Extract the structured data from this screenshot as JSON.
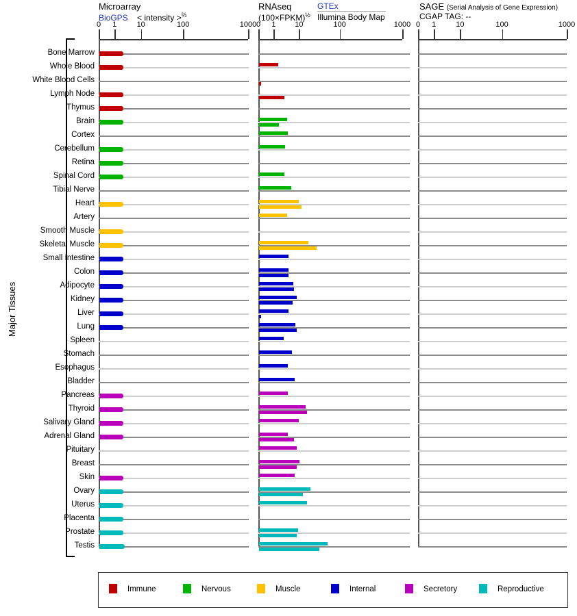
{
  "header": {
    "panels": [
      {
        "title": "Microarray",
        "link_label": "BioGPS",
        "scale_label": "< intensity >",
        "scale_sup": "⅔",
        "ticks": [
          "0",
          "1",
          "10",
          "100",
          "1000"
        ]
      },
      {
        "title": "RNAseq",
        "scale_label": "(100×FPKM)",
        "scale_sup": "½",
        "link_label": "GTEx",
        "sub_label": "Illumina Body Map",
        "ticks": [
          "0",
          "1",
          "10",
          "100",
          "1000"
        ]
      },
      {
        "title": "SAGE",
        "title_note": "(Serial Analysis of Gene Expression)",
        "tag_label": "CGAP TAG: --",
        "ticks": [
          "0",
          "1",
          "10",
          "100",
          "1000"
        ]
      }
    ]
  },
  "sidebar_label": "Major Tissues",
  "colors": {
    "immune": "#C00000",
    "nervous": "#00B400",
    "muscle": "#FCC200",
    "internal": "#0000CC",
    "secretory": "#BB00BB",
    "reproductive": "#00B9B9"
  },
  "legend": [
    {
      "key": "immune",
      "label": "Immune"
    },
    {
      "key": "nervous",
      "label": "Nervous"
    },
    {
      "key": "muscle",
      "label": "Muscle"
    },
    {
      "key": "internal",
      "label": "Internal"
    },
    {
      "key": "secretory",
      "label": "Secretory"
    },
    {
      "key": "reproductive",
      "label": "Reproductive"
    }
  ],
  "chart_data": {
    "type": "bar",
    "orientation": "horizontal",
    "axis_scale": "log-like, ticks at 0/1/10/100/1000",
    "panels": [
      {
        "name": "Microarray",
        "source": "BioGPS",
        "unit": "< intensity >^(2/3)",
        "xlim": [
          0,
          1000
        ]
      },
      {
        "name": "RNAseq",
        "sources": [
          "GTEx",
          "Illumina Body Map"
        ],
        "unit": "(100×FPKM)^(1/2)",
        "xlim": [
          0,
          1000
        ]
      },
      {
        "name": "SAGE",
        "source": "CGAP",
        "tag": "--",
        "xlim": [
          0,
          1000
        ],
        "values": "none"
      }
    ],
    "rows": [
      {
        "tissue": "Bone Marrow",
        "category": "immune",
        "microarray": 2,
        "rnaseq_gtex": null,
        "rnaseq_illumina": null
      },
      {
        "tissue": "Whole Blood",
        "category": "immune",
        "microarray": 2,
        "rnaseq_gtex": 1.4,
        "rnaseq_illumina": null
      },
      {
        "tissue": "White Blood Cells",
        "category": "immune",
        "microarray": null,
        "rnaseq_gtex": null,
        "rnaseq_illumina": 0.15
      },
      {
        "tissue": "Lymph Node",
        "category": "immune",
        "microarray": 2,
        "rnaseq_gtex": null,
        "rnaseq_illumina": 2.5
      },
      {
        "tissue": "Thymus",
        "category": "immune",
        "microarray": 2,
        "rnaseq_gtex": null,
        "rnaseq_illumina": null
      },
      {
        "tissue": "Brain",
        "category": "nervous",
        "microarray": 2,
        "rnaseq_gtex": 3.1,
        "rnaseq_illumina": 1.5
      },
      {
        "tissue": "Cortex",
        "category": "nervous",
        "microarray": null,
        "rnaseq_gtex": 3.4,
        "rnaseq_illumina": null
      },
      {
        "tissue": "Cerebellum",
        "category": "nervous",
        "microarray": 2,
        "rnaseq_gtex": 2.6,
        "rnaseq_illumina": null
      },
      {
        "tissue": "Retina",
        "category": "nervous",
        "microarray": 2,
        "rnaseq_gtex": null,
        "rnaseq_illumina": null
      },
      {
        "tissue": "Spinal Cord",
        "category": "nervous",
        "microarray": 2,
        "rnaseq_gtex": 2.5,
        "rnaseq_illumina": null
      },
      {
        "tissue": "Tibial Nerve",
        "category": "nervous",
        "microarray": null,
        "rnaseq_gtex": 4.7,
        "rnaseq_illumina": null
      },
      {
        "tissue": "Heart",
        "category": "muscle",
        "microarray": 2,
        "rnaseq_gtex": 9,
        "rnaseq_illumina": 11
      },
      {
        "tissue": "Artery",
        "category": "muscle",
        "microarray": null,
        "rnaseq_gtex": 3.2,
        "rnaseq_illumina": null
      },
      {
        "tissue": "Smooth Muscle",
        "category": "muscle",
        "microarray": 2,
        "rnaseq_gtex": null,
        "rnaseq_illumina": null
      },
      {
        "tissue": "Skeletal Muscle",
        "category": "muscle",
        "microarray": 2,
        "rnaseq_gtex": 16,
        "rnaseq_illumina": 26
      },
      {
        "tissue": "Small Intestine",
        "category": "internal",
        "microarray": 2,
        "rnaseq_gtex": 3.5,
        "rnaseq_illumina": null
      },
      {
        "tissue": "Colon",
        "category": "internal",
        "microarray": 2,
        "rnaseq_gtex": 3.5,
        "rnaseq_illumina": 3.6
      },
      {
        "tissue": "Adipocyte",
        "category": "internal",
        "microarray": 2,
        "rnaseq_gtex": 5.4,
        "rnaseq_illumina": 6.0
      },
      {
        "tissue": "Kidney",
        "category": "internal",
        "microarray": 2,
        "rnaseq_gtex": 7.8,
        "rnaseq_illumina": 5.2
      },
      {
        "tissue": "Liver",
        "category": "internal",
        "microarray": 2,
        "rnaseq_gtex": 3.7,
        "rnaseq_illumina": 0.15
      },
      {
        "tissue": "Lung",
        "category": "internal",
        "microarray": 2,
        "rnaseq_gtex": 6.6,
        "rnaseq_illumina": 7.7
      },
      {
        "tissue": "Spleen",
        "category": "internal",
        "microarray": null,
        "rnaseq_gtex": 2.3,
        "rnaseq_illumina": null
      },
      {
        "tissue": "Stomach",
        "category": "internal",
        "microarray": null,
        "rnaseq_gtex": 5.0,
        "rnaseq_illumina": null
      },
      {
        "tissue": "Esophagus",
        "category": "internal",
        "microarray": null,
        "rnaseq_gtex": 3.4,
        "rnaseq_illumina": null
      },
      {
        "tissue": "Bladder",
        "category": "internal",
        "microarray": null,
        "rnaseq_gtex": 6.3,
        "rnaseq_illumina": null
      },
      {
        "tissue": "Pancreas",
        "category": "secretory",
        "microarray": 2,
        "rnaseq_gtex": 3.4,
        "rnaseq_illumina": null
      },
      {
        "tissue": "Thyroid",
        "category": "secretory",
        "microarray": 2,
        "rnaseq_gtex": 14,
        "rnaseq_illumina": 15
      },
      {
        "tissue": "Salivary Gland",
        "category": "secretory",
        "microarray": 2,
        "rnaseq_gtex": 8.9,
        "rnaseq_illumina": null
      },
      {
        "tissue": "Adrenal Gland",
        "category": "secretory",
        "microarray": 2,
        "rnaseq_gtex": 3.3,
        "rnaseq_illumina": 6.0
      },
      {
        "tissue": "Pituitary",
        "category": "secretory",
        "microarray": null,
        "rnaseq_gtex": 7.8,
        "rnaseq_illumina": null
      },
      {
        "tissue": "Breast",
        "category": "secretory",
        "microarray": null,
        "rnaseq_gtex": 10,
        "rnaseq_illumina": 7.8
      },
      {
        "tissue": "Skin",
        "category": "secretory",
        "microarray": 2,
        "rnaseq_gtex": 6.4,
        "rnaseq_illumina": null
      },
      {
        "tissue": "Ovary",
        "category": "reproductive",
        "microarray": 2,
        "rnaseq_gtex": 18,
        "rnaseq_illumina": 12
      },
      {
        "tissue": "Uterus",
        "category": "reproductive",
        "microarray": 2,
        "rnaseq_gtex": 15,
        "rnaseq_illumina": null
      },
      {
        "tissue": "Placenta",
        "category": "reproductive",
        "microarray": 2,
        "rnaseq_gtex": null,
        "rnaseq_illumina": null
      },
      {
        "tissue": "Prostate",
        "category": "reproductive",
        "microarray": 2,
        "rnaseq_gtex": 8.5,
        "rnaseq_illumina": 7.8
      },
      {
        "tissue": "Testis",
        "category": "reproductive",
        "microarray": 2.3,
        "rnaseq_gtex": 49,
        "rnaseq_illumina": 30
      }
    ]
  }
}
